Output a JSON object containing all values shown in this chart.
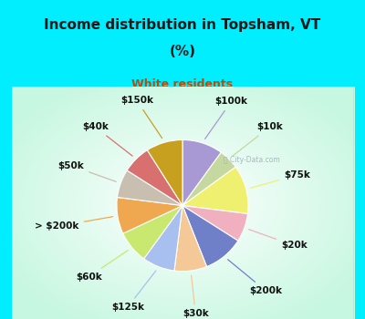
{
  "title_line1": "Income distribution in Topsham, VT",
  "title_line2": "(%)",
  "subtitle": "White residents",
  "title_color": "#1a1a1a",
  "subtitle_color": "#b05010",
  "bg_cyan": "#00eeff",
  "labels": [
    "$100k",
    "$10k",
    "$75k",
    "$20k",
    "$200k",
    "$30k",
    "$125k",
    "$60k",
    "> $200k",
    "$50k",
    "$40k",
    "$150k"
  ],
  "values": [
    10,
    5,
    12,
    7,
    10,
    8,
    8,
    8,
    9,
    7,
    7,
    9
  ],
  "colors": [
    "#a899d4",
    "#c5d8a0",
    "#f0f070",
    "#f0b0c0",
    "#7080c8",
    "#f5c898",
    "#a8c0f0",
    "#c8e870",
    "#f0a850",
    "#c8bfb0",
    "#d87070",
    "#c8a020"
  ],
  "label_fontsize": 7.5,
  "wedge_linewidth": 0.8,
  "wedge_edgecolor": "#ffffff",
  "watermark": "City-Data.com"
}
